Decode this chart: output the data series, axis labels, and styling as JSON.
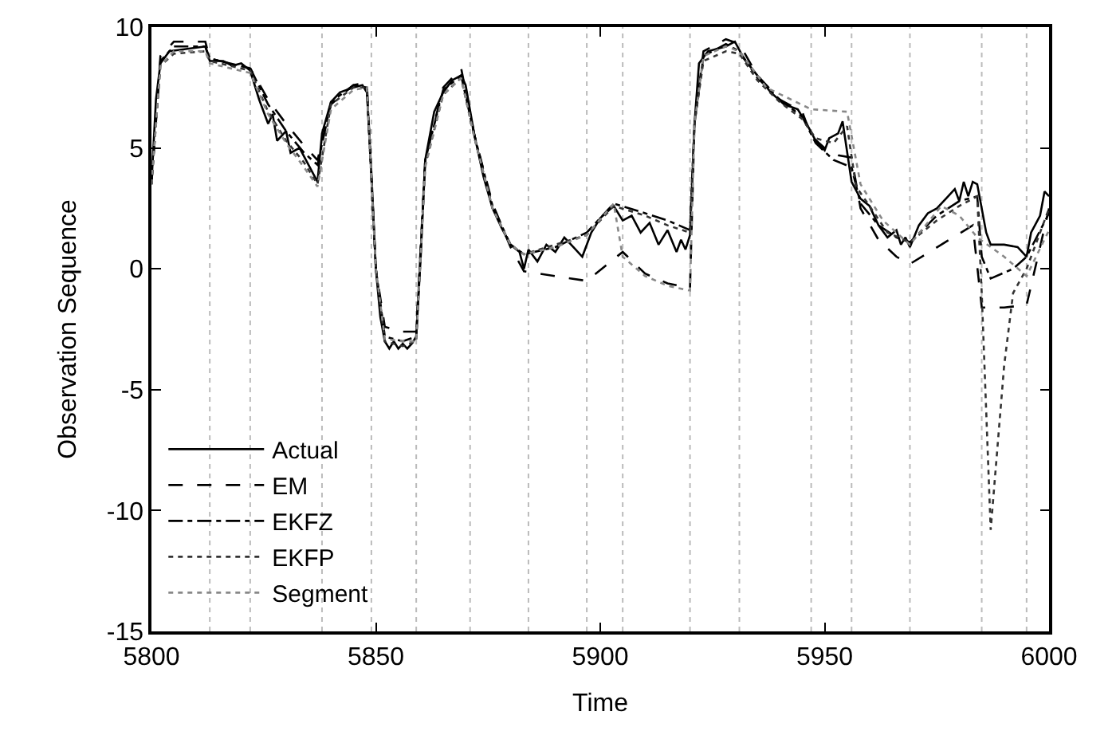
{
  "chart_data": {
    "type": "line",
    "xlabel": "Time",
    "ylabel": "Observation Sequence",
    "xlim": [
      5800,
      6000
    ],
    "xticks": [
      5800,
      5850,
      5900,
      5950,
      6000
    ],
    "ylim": [
      -15,
      10
    ],
    "yticks": [
      -15,
      -10,
      -5,
      0,
      5,
      10
    ],
    "grid": false,
    "legend": "bottom left",
    "marker": "none",
    "series": [
      {
        "name": "Actual",
        "color": "#000000",
        "line_style": "solid",
        "x": [
          5800,
          5801,
          5802,
          5804,
          5808,
          5812,
          5813,
          5816,
          5818,
          5820,
          5822,
          5824,
          5826,
          5827,
          5828,
          5830,
          5831,
          5833,
          5835,
          5837,
          5838,
          5840,
          5842,
          5845,
          5847,
          5848,
          5849,
          5850,
          5851,
          5852,
          5853,
          5854,
          5855,
          5856,
          5857,
          5858,
          5859,
          5860,
          5861,
          5863,
          5865,
          5867,
          5869,
          5870,
          5872,
          5874,
          5876,
          5878,
          5880,
          5882,
          5883,
          5884,
          5886,
          5888,
          5890,
          5892,
          5894,
          5896,
          5898,
          5900,
          5903,
          5905,
          5907,
          5909,
          5911,
          5913,
          5915,
          5917,
          5918,
          5919,
          5920,
          5921,
          5922,
          5924,
          5928,
          5930,
          5932,
          5935,
          5938,
          5941,
          5944,
          5946,
          5948,
          5950,
          5951,
          5953,
          5954,
          5956,
          5958,
          5960,
          5962,
          5964,
          5966,
          5967,
          5968,
          5969,
          5971,
          5973,
          5975,
          5977,
          5979,
          5980,
          5981,
          5982,
          5983,
          5984,
          5986,
          5987,
          5990,
          5993,
          5995,
          5996,
          5998,
          5999,
          6000
        ],
        "values": [
          3.5,
          7,
          8.5,
          9.0,
          9.1,
          9.2,
          8.6,
          8.6,
          8.4,
          8.5,
          8.2,
          7.0,
          6.0,
          6.4,
          5.3,
          5.7,
          4.8,
          5.0,
          4.3,
          3.6,
          5.6,
          6.9,
          7.3,
          7.5,
          7.6,
          7.3,
          4.0,
          0,
          -2.0,
          -3.0,
          -3.3,
          -3.0,
          -3.3,
          -3.1,
          -3.3,
          -3.1,
          -2.8,
          0.5,
          4.5,
          6.5,
          7.3,
          7.8,
          8.0,
          7.6,
          5.5,
          3.8,
          2.5,
          1.7,
          1.0,
          0.7,
          0.0,
          0.8,
          0.3,
          1.0,
          0.7,
          1.3,
          0.9,
          0.5,
          1.5,
          2.1,
          2.6,
          2.0,
          2.2,
          1.5,
          1.9,
          1.0,
          1.6,
          0.7,
          1.2,
          0.8,
          1.4,
          6.0,
          8.5,
          9.0,
          9.2,
          9.4,
          8.7,
          8.0,
          7.3,
          6.8,
          6.6,
          6.0,
          5.3,
          4.9,
          5.4,
          5.6,
          6.1,
          3.6,
          2.9,
          2.6,
          1.8,
          1.3,
          1.6,
          1.0,
          1.3,
          0.9,
          1.8,
          2.3,
          2.5,
          2.9,
          3.3,
          2.8,
          3.6,
          3.0,
          3.6,
          3.5,
          1.5,
          1.0,
          1.0,
          0.9,
          0.5,
          1.5,
          2.2,
          3.2,
          3.0
        ]
      },
      {
        "name": "EM",
        "color": "#000000",
        "line_style": "dashed",
        "x": [
          5800,
          5802,
          5805,
          5812,
          5813,
          5822,
          5826,
          5830,
          5834,
          5837,
          5840,
          5845,
          5848,
          5850,
          5852,
          5856,
          5859,
          5861,
          5865,
          5869,
          5872,
          5876,
          5880,
          5883,
          5890,
          5897,
          5905,
          5910,
          5915,
          5920,
          5921,
          5923,
          5928,
          5931,
          5935,
          5940,
          5945,
          5947,
          5950,
          5953,
          5956,
          5958,
          5962,
          5966,
          5969,
          5976,
          5983,
          5985,
          5990,
          5995,
          6000
        ],
        "values": [
          3.5,
          8.8,
          9.4,
          9.4,
          8.7,
          8.3,
          7.0,
          6.0,
          5.1,
          4.5,
          6.8,
          7.6,
          7.7,
          0,
          -2.4,
          -2.6,
          -2.6,
          4.5,
          7.5,
          8.3,
          5.5,
          2.7,
          0.9,
          -0.1,
          -0.3,
          -0.5,
          0.7,
          -0.2,
          -0.6,
          -0.8,
          6,
          9.0,
          9.5,
          9.3,
          8.0,
          7.0,
          6.5,
          5.5,
          5.0,
          4.7,
          4.6,
          2.5,
          1.2,
          0.5,
          0.2,
          1.0,
          1.8,
          -1.6,
          -1.6,
          -1.5,
          2.5
        ]
      },
      {
        "name": "EKFZ",
        "color": "#000000",
        "line_style": "dashdot",
        "x": [
          5800,
          5802,
          5805,
          5812,
          5813,
          5822,
          5826,
          5830,
          5834,
          5837,
          5840,
          5845,
          5848,
          5850,
          5852,
          5856,
          5859,
          5861,
          5865,
          5869,
          5872,
          5876,
          5880,
          5883,
          5890,
          5897,
          5903,
          5910,
          5915,
          5920,
          5921,
          5923,
          5928,
          5931,
          5935,
          5940,
          5945,
          5948,
          5952,
          5956,
          5958,
          5962,
          5966,
          5969,
          5975,
          5980,
          5984,
          5985,
          5987,
          5992,
          5995,
          6000
        ],
        "values": [
          3.5,
          8.6,
          9.2,
          9.2,
          8.7,
          8.3,
          6.8,
          5.7,
          4.8,
          4.3,
          6.9,
          7.6,
          7.5,
          0,
          -2.8,
          -3.0,
          -2.8,
          4.5,
          7.4,
          8.0,
          5.5,
          2.6,
          1.0,
          0.6,
          0.9,
          1.5,
          2.7,
          2.3,
          2.0,
          1.6,
          6,
          8.8,
          9.3,
          9.0,
          7.9,
          7.0,
          6.3,
          5.2,
          4.5,
          4.2,
          2.7,
          1.8,
          1.3,
          1.1,
          2.2,
          2.8,
          3.0,
          0.5,
          -0.4,
          0.0,
          0.5,
          2.3
        ]
      },
      {
        "name": "EKFP",
        "color": "#333333",
        "line_style": "dotted",
        "x": [
          5800,
          5802,
          5805,
          5812,
          5813,
          5822,
          5826,
          5830,
          5834,
          5837,
          5840,
          5845,
          5848,
          5850,
          5852,
          5856,
          5859,
          5861,
          5865,
          5869,
          5872,
          5876,
          5880,
          5883,
          5890,
          5897,
          5903,
          5910,
          5915,
          5920,
          5921,
          5923,
          5928,
          5931,
          5935,
          5940,
          5945,
          5948,
          5952,
          5955,
          5957,
          5960,
          5964,
          5969,
          5975,
          5980,
          5984,
          5985,
          5987,
          5990,
          5992,
          5995,
          6000
        ],
        "values": [
          3.5,
          8.4,
          8.9,
          9.0,
          8.6,
          8.2,
          6.5,
          5.3,
          4.4,
          3.5,
          6.8,
          7.5,
          7.5,
          0,
          -3.0,
          -3.2,
          -3.0,
          4.3,
          7.2,
          7.9,
          5.4,
          2.5,
          1.0,
          0.6,
          1.0,
          1.4,
          2.6,
          2.2,
          1.8,
          1.5,
          6,
          8.6,
          9.0,
          8.9,
          7.8,
          6.9,
          6.2,
          5.4,
          5.2,
          5.9,
          3.4,
          2.6,
          1.5,
          1.1,
          2.0,
          2.6,
          3.0,
          -1.0,
          -10.8,
          -4.0,
          -1.0,
          0.0,
          2.5
        ]
      },
      {
        "name": "Segment",
        "color": "#888888",
        "line_style": "dotted",
        "x": [
          5800,
          5802,
          5805,
          5812,
          5813,
          5822,
          5826,
          5830,
          5834,
          5837,
          5840,
          5845,
          5848,
          5850,
          5852,
          5856,
          5859,
          5861,
          5865,
          5869,
          5872,
          5876,
          5880,
          5883,
          5890,
          5897,
          5903,
          5905,
          5910,
          5915,
          5920,
          5921,
          5923,
          5928,
          5931,
          5937,
          5947,
          5955,
          5958,
          5963,
          5969,
          5976,
          5980,
          5984,
          5990,
          5995,
          6000
        ],
        "values": [
          3.5,
          8.4,
          9.0,
          9.0,
          8.5,
          8.1,
          6.4,
          5.2,
          4.2,
          3.4,
          6.6,
          7.4,
          7.5,
          0,
          -2.9,
          -3.0,
          -3.0,
          4.2,
          7.2,
          7.9,
          5.4,
          2.5,
          1.0,
          0.6,
          0.9,
          1.4,
          2.7,
          0.5,
          -0.3,
          -0.7,
          -0.9,
          6,
          8.8,
          9.2,
          9.0,
          7.5,
          6.6,
          6.5,
          3.5,
          2.0,
          1.0,
          2.6,
          2.2,
          1.3,
          0.5,
          -0.3,
          1.6
        ]
      }
    ],
    "ref_lines": [
      {
        "axis": "x",
        "value": 5813,
        "color": "#bbbbbb",
        "line_style": "dotted"
      },
      {
        "axis": "x",
        "value": 5822,
        "color": "#bbbbbb",
        "line_style": "dotted"
      },
      {
        "axis": "x",
        "value": 5838,
        "color": "#bbbbbb",
        "line_style": "dotted"
      },
      {
        "axis": "x",
        "value": 5849,
        "color": "#bbbbbb",
        "line_style": "dotted"
      },
      {
        "axis": "x",
        "value": 5859,
        "color": "#bbbbbb",
        "line_style": "dotted"
      },
      {
        "axis": "x",
        "value": 5871,
        "color": "#bbbbbb",
        "line_style": "dotted"
      },
      {
        "axis": "x",
        "value": 5884,
        "color": "#bbbbbb",
        "line_style": "dotted"
      },
      {
        "axis": "x",
        "value": 5897,
        "color": "#bbbbbb",
        "line_style": "dotted"
      },
      {
        "axis": "x",
        "value": 5905,
        "color": "#bbbbbb",
        "line_style": "dotted"
      },
      {
        "axis": "x",
        "value": 5920,
        "color": "#bbbbbb",
        "line_style": "dotted"
      },
      {
        "axis": "x",
        "value": 5931,
        "color": "#bbbbbb",
        "line_style": "dotted"
      },
      {
        "axis": "x",
        "value": 5947,
        "color": "#bbbbbb",
        "line_style": "dotted"
      },
      {
        "axis": "x",
        "value": 5956,
        "color": "#bbbbbb",
        "line_style": "dotted"
      },
      {
        "axis": "x",
        "value": 5969,
        "color": "#bbbbbb",
        "line_style": "dotted"
      },
      {
        "axis": "x",
        "value": 5985,
        "color": "#bbbbbb",
        "line_style": "dotted"
      },
      {
        "axis": "x",
        "value": 5995,
        "color": "#bbbbbb",
        "line_style": "dotted"
      }
    ]
  }
}
